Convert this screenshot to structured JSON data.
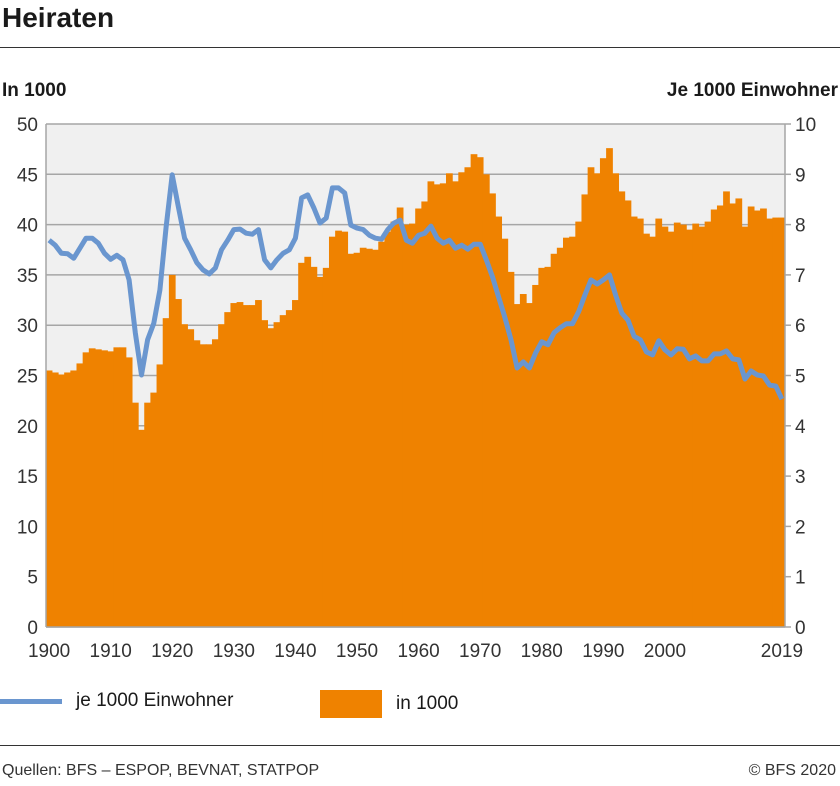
{
  "title": "Heiraten",
  "left_axis_label": "In 1000",
  "right_axis_label": "Je 1000 Einwohner",
  "source": "Quellen: BFS – ESPOP, BEVNAT, STATPOP",
  "copyright": "© BFS 2020",
  "colors": {
    "bars": "#ef8200",
    "line": "#6a96cf",
    "plot_bg": "#f0f0f0",
    "grid": "#a6a6a6"
  },
  "chart_data": {
    "type": "bar+line",
    "title": "Heiraten",
    "x_tick_labels": [
      "1900",
      "1910",
      "1920",
      "1930",
      "1940",
      "1950",
      "1960",
      "1970",
      "1980",
      "1990",
      "2000",
      "2019"
    ],
    "x_ticks": [
      1900,
      1910,
      1920,
      1930,
      1940,
      1950,
      1960,
      1970,
      1980,
      1990,
      2000,
      2019
    ],
    "xlim": [
      1900,
      2019
    ],
    "y_left": {
      "label": "In 1000",
      "ylim": [
        0,
        50
      ],
      "ticks": [
        0,
        5,
        10,
        15,
        20,
        25,
        30,
        35,
        40,
        45,
        50
      ]
    },
    "y_right": {
      "label": "Je 1000 Einwohner",
      "ylim": [
        0,
        10
      ],
      "ticks": [
        0,
        1,
        2,
        3,
        4,
        5,
        6,
        7,
        8,
        9,
        10
      ]
    },
    "grid": true,
    "legend_position": "bottom",
    "start_year": 1900,
    "series": [
      {
        "name": "je 1000 Einwohner",
        "type": "line",
        "axis": "right",
        "values": [
          7.69,
          7.59,
          7.43,
          7.42,
          7.33,
          7.53,
          7.73,
          7.73,
          7.63,
          7.43,
          7.31,
          7.39,
          7.3,
          6.9,
          5.85,
          5.01,
          5.71,
          6.04,
          6.7,
          7.95,
          8.99,
          8.35,
          7.73,
          7.5,
          7.24,
          7.1,
          7.02,
          7.14,
          7.5,
          7.69,
          7.9,
          7.91,
          7.83,
          7.81,
          7.9,
          7.3,
          7.14,
          7.3,
          7.43,
          7.5,
          7.73,
          8.53,
          8.59,
          8.33,
          8.03,
          8.13,
          8.73,
          8.73,
          8.63,
          7.99,
          7.93,
          7.9,
          7.79,
          7.73,
          7.71,
          7.9,
          8.03,
          8.09,
          7.69,
          7.63,
          7.79,
          7.83,
          7.97,
          7.73,
          7.63,
          7.69,
          7.53,
          7.59,
          7.51,
          7.61,
          7.61,
          7.3,
          6.96,
          6.56,
          6.16,
          5.71,
          5.15,
          5.27,
          5.15,
          5.45,
          5.67,
          5.61,
          5.85,
          5.95,
          6.03,
          6.03,
          6.27,
          6.6,
          6.9,
          6.82,
          6.9,
          7.0,
          6.6,
          6.24,
          6.1,
          5.78,
          5.71,
          5.47,
          5.41,
          5.69,
          5.51,
          5.41,
          5.53,
          5.52,
          5.33,
          5.39,
          5.29,
          5.29,
          5.43,
          5.43,
          5.49,
          5.33,
          5.31,
          4.93,
          5.09,
          5.01,
          4.99,
          4.81,
          4.79,
          4.53
        ]
      },
      {
        "name": "in 1000",
        "type": "bar",
        "axis": "left",
        "values": [
          25.5,
          25.3,
          25.1,
          25.3,
          25.5,
          26.2,
          27.3,
          27.7,
          27.6,
          27.5,
          27.4,
          27.8,
          27.8,
          26.8,
          22.3,
          19.6,
          22.3,
          23.3,
          26.1,
          30.7,
          35.0,
          32.6,
          30.1,
          29.6,
          28.5,
          28.1,
          28.1,
          28.6,
          30.1,
          31.3,
          32.2,
          32.3,
          32.0,
          32.0,
          32.5,
          30.5,
          29.7,
          30.3,
          31.0,
          31.5,
          32.5,
          36.2,
          36.8,
          35.8,
          34.8,
          35.7,
          38.8,
          39.4,
          39.3,
          37.1,
          37.2,
          37.7,
          37.6,
          37.5,
          38.3,
          39.3,
          40.3,
          41.7,
          40.0,
          40.1,
          41.6,
          42.3,
          44.3,
          44.0,
          44.1,
          45.1,
          44.3,
          45.2,
          45.7,
          47.0,
          46.7,
          45.0,
          43.1,
          40.8,
          38.6,
          35.3,
          32.1,
          33.1,
          32.2,
          34.0,
          35.7,
          35.8,
          37.1,
          37.7,
          38.7,
          38.8,
          40.3,
          43.0,
          45.7,
          45.1,
          46.6,
          47.6,
          45.1,
          43.3,
          42.4,
          40.8,
          40.6,
          39.1,
          38.8,
          40.6,
          39.8,
          39.3,
          40.2,
          40.0,
          39.5,
          40.1,
          39.8,
          40.3,
          41.5,
          41.9,
          43.3,
          42.1,
          42.6,
          39.8,
          41.8,
          41.4,
          41.6,
          40.6,
          40.7,
          40.7
        ]
      }
    ]
  }
}
